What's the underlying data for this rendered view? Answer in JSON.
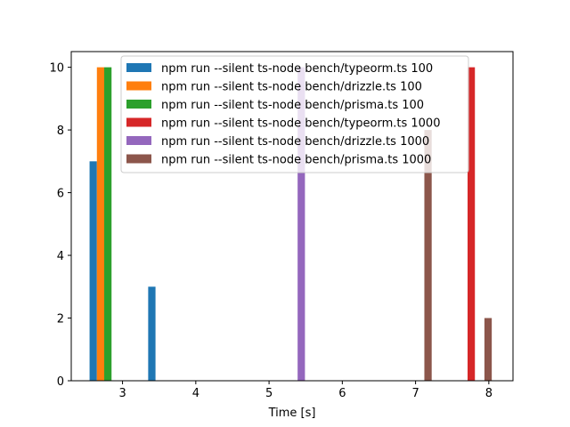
{
  "chart_data": {
    "type": "bar",
    "title": "",
    "xlabel": "Time [s]",
    "ylabel": "",
    "xlim": [
      2.3,
      8.33
    ],
    "ylim": [
      0,
      10.5
    ],
    "xticks": [
      3,
      4,
      5,
      6,
      7,
      8
    ],
    "yticks": [
      0,
      2,
      4,
      6,
      8,
      10
    ],
    "grid": false,
    "legend_position": "top-center",
    "bar_width": 0.1,
    "series": [
      {
        "name": "npm run --silent ts-node bench/typeorm.ts 100",
        "color": "#1f77b4",
        "bars": [
          {
            "x": 2.6,
            "value": 7
          },
          {
            "x": 3.4,
            "value": 3
          }
        ]
      },
      {
        "name": "npm run --silent ts-node bench/drizzle.ts 100",
        "color": "#ff7f0e",
        "bars": [
          {
            "x": 2.7,
            "value": 10
          }
        ]
      },
      {
        "name": "npm run --silent ts-node bench/prisma.ts 100",
        "color": "#2ca02c",
        "bars": [
          {
            "x": 2.8,
            "value": 10
          }
        ]
      },
      {
        "name": "npm run --silent ts-node bench/typeorm.ts 1000",
        "color": "#d62728",
        "bars": [
          {
            "x": 7.76,
            "value": 10
          }
        ]
      },
      {
        "name": "npm run --silent ts-node bench/drizzle.ts 1000",
        "color": "#9467bd",
        "bars": [
          {
            "x": 5.44,
            "value": 10
          }
        ]
      },
      {
        "name": "npm run --silent ts-node bench/prisma.ts 1000",
        "color": "#8c564b",
        "bars": [
          {
            "x": 7.17,
            "value": 8
          },
          {
            "x": 7.99,
            "value": 2
          }
        ]
      }
    ]
  }
}
